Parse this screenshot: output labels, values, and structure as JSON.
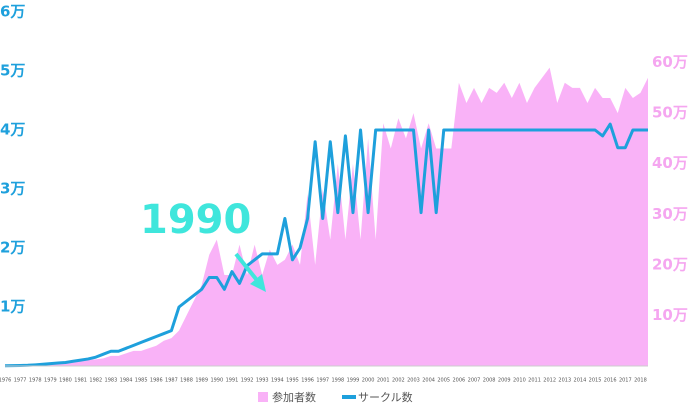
{
  "chart_data": {
    "type": "combo",
    "annotation": "1990",
    "categories": [
      "1976",
      null,
      "1977",
      null,
      "1978",
      null,
      "1979",
      null,
      "1980",
      null,
      "1981",
      null,
      "1982",
      null,
      "1983",
      null,
      "1984",
      null,
      "1985",
      null,
      "1986",
      null,
      "1987",
      null,
      "1988",
      null,
      "1989",
      null,
      "1990",
      null,
      "1991",
      null,
      "1992",
      null,
      "1993",
      null,
      "1994",
      null,
      "1995",
      null,
      "1996",
      null,
      "1997",
      null,
      "1998",
      null,
      "1999",
      null,
      "2000",
      null,
      "2001",
      null,
      "2002",
      null,
      "2003",
      null,
      "2004",
      null,
      "2005",
      null,
      "2006",
      null,
      "2007",
      null,
      "2008",
      null,
      "2009",
      null,
      "2010",
      null,
      "2011",
      null,
      "2012",
      null,
      "2013",
      null,
      "2014",
      null,
      "2015",
      null,
      "2016",
      null,
      "2017",
      null,
      "2018",
      null
    ],
    "series": [
      {
        "name": "参加者数",
        "type": "area",
        "axis": "y2",
        "color": "#f9b2f7",
        "values": [
          700,
          1000,
          1500,
          2000,
          2000,
          3000,
          4000,
          5000,
          7000,
          8000,
          10000,
          12000,
          13000,
          15000,
          20000,
          20000,
          25000,
          30000,
          30000,
          35000,
          40000,
          50000,
          55000,
          70000,
          100000,
          130000,
          160000,
          220000,
          250000,
          180000,
          180000,
          240000,
          180000,
          240000,
          180000,
          230000,
          200000,
          210000,
          240000,
          200000,
          340000,
          200000,
          350000,
          250000,
          400000,
          250000,
          400000,
          250000,
          450000,
          250000,
          480000,
          430000,
          490000,
          450000,
          500000,
          430000,
          480000,
          430000,
          430000,
          430000,
          560000,
          520000,
          550000,
          520000,
          550000,
          540000,
          560000,
          530000,
          560000,
          520000,
          550000,
          570000,
          590000,
          520000,
          560000,
          550000,
          550000,
          520000,
          550000,
          530000,
          530000,
          500000,
          550000,
          530000,
          540000,
          570000
        ]
      },
      {
        "name": "サークル数",
        "type": "line",
        "color": "#1ea0dc",
        "values": [
          32,
          54,
          80,
          120,
          200,
          300,
          400,
          500,
          600,
          800,
          1000,
          1200,
          1500,
          2000,
          2500,
          2500,
          3000,
          3500,
          4000,
          4500,
          5000,
          5500,
          6000,
          10000,
          11000,
          12000,
          13000,
          15000,
          15000,
          13000,
          16000,
          14000,
          17000,
          18000,
          19000,
          19000,
          19000,
          25000,
          18000,
          20000,
          25000,
          38000,
          25000,
          38000,
          26000,
          39000,
          26000,
          40000,
          26000,
          40000,
          40000,
          40000,
          40000,
          40000,
          40000,
          26000,
          40000,
          26000,
          40000,
          40000,
          40000,
          40000,
          40000,
          40000,
          40000,
          40000,
          40000,
          40000,
          40000,
          40000,
          40000,
          40000,
          40000,
          40000,
          40000,
          40000,
          40000,
          40000,
          40000,
          39000,
          41000,
          37000,
          37000,
          40000,
          40000,
          40000
        ]
      }
    ],
    "ylim": [
      0,
      60000
    ],
    "yticks": [
      {
        "value": 10000,
        "label": "1万"
      },
      {
        "value": 20000,
        "label": "2万"
      },
      {
        "value": 30000,
        "label": "3万"
      },
      {
        "value": 40000,
        "label": "4万"
      },
      {
        "value": 50000,
        "label": "5万"
      },
      {
        "value": 60000,
        "label": "6万"
      }
    ],
    "y2lim": [
      0,
      700000
    ],
    "y2ticks": [
      {
        "value": 100000,
        "label": "10万"
      },
      {
        "value": 200000,
        "label": "20万"
      },
      {
        "value": 300000,
        "label": "30万"
      },
      {
        "value": 400000,
        "label": "40万"
      },
      {
        "value": 500000,
        "label": "50万"
      },
      {
        "value": 600000,
        "label": "60万"
      }
    ],
    "legend": "bottom"
  }
}
